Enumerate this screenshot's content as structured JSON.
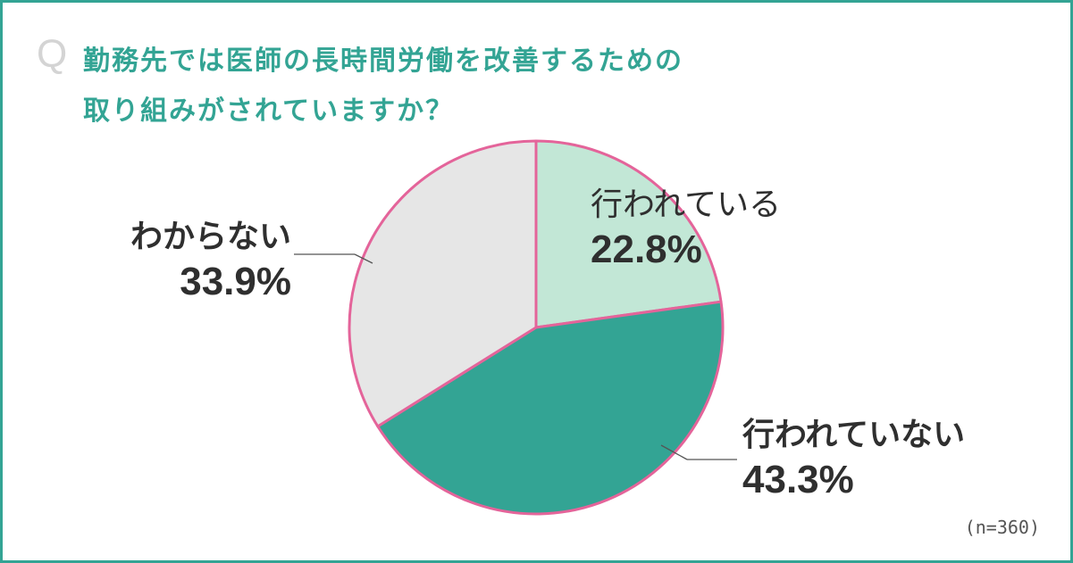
{
  "question": {
    "mark": "Q",
    "line1": "勤務先では医師の長時間労働を改善するための",
    "line2": "取り組みがされていますか？"
  },
  "chart_data": {
    "type": "pie",
    "title": "勤務先では医師の長時間労働を改善するための取り組みがされていますか？",
    "slices": [
      {
        "label": "行われている",
        "value": 22.8,
        "value_text": "22.8%",
        "color": "#c2e7d6"
      },
      {
        "label": "行われていない",
        "value": 43.3,
        "value_text": "43.3%",
        "color": "#33a494"
      },
      {
        "label": "わからない",
        "value": 33.9,
        "value_text": "33.9%",
        "color": "#e6e6e6"
      }
    ],
    "edge_color": "#e4649a",
    "note": "(n=360)"
  },
  "colors": {
    "frame": "#33a494",
    "title": "#33a494",
    "text": "#2f2f2f"
  }
}
